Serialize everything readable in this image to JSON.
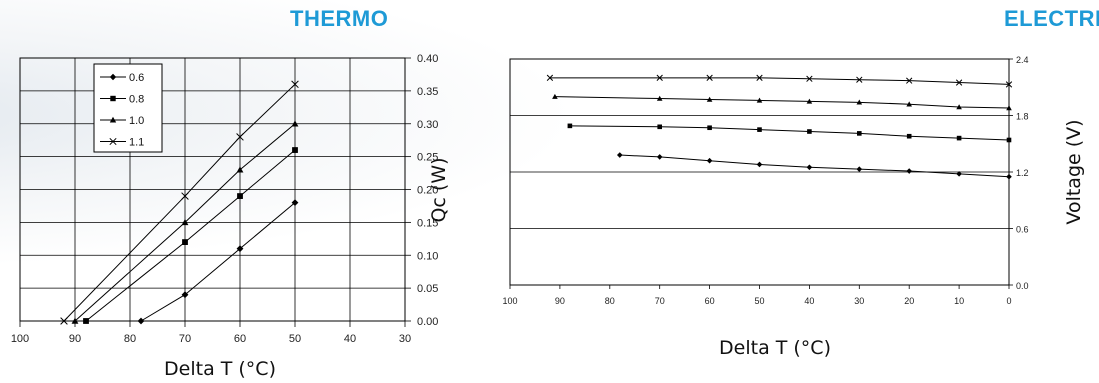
{
  "headings": {
    "thermo": "THERMO",
    "electric": "ELECTRIC"
  },
  "chart_data": [
    {
      "type": "line",
      "xlabel": "Delta T (°C)",
      "ylabel": "Qc (W)",
      "xlim": [
        100,
        30
      ],
      "ylim": [
        0,
        0.4
      ],
      "xticks": [
        "100",
        "90",
        "80",
        "70",
        "60",
        "50",
        "40",
        "30"
      ],
      "yticks": [
        "0.00",
        "0.05",
        "0.10",
        "0.15",
        "0.20",
        "0.25",
        "0.30",
        "0.35",
        "0.40"
      ],
      "grid": true,
      "legend_position": "top-left",
      "series": [
        {
          "name": "0.6",
          "marker": "diamond",
          "x": [
            78,
            70,
            60,
            50
          ],
          "y": [
            0.0,
            0.04,
            0.11,
            0.18
          ]
        },
        {
          "name": "0.8",
          "marker": "square",
          "x": [
            88,
            70,
            60,
            50
          ],
          "y": [
            0.0,
            0.12,
            0.19,
            0.26
          ]
        },
        {
          "name": "1.0",
          "marker": "triangle",
          "x": [
            90,
            70,
            60,
            50
          ],
          "y": [
            0.0,
            0.15,
            0.23,
            0.3
          ]
        },
        {
          "name": "1.1",
          "marker": "cross",
          "x": [
            92,
            70,
            60,
            50
          ],
          "y": [
            0.0,
            0.19,
            0.28,
            0.36
          ]
        }
      ]
    },
    {
      "type": "line",
      "xlabel": "Delta T (°C)",
      "ylabel": "Voltage (V)",
      "xlim": [
        100,
        0
      ],
      "ylim": [
        0,
        2.4
      ],
      "xticks": [
        "100",
        "90",
        "80",
        "70",
        "60",
        "50",
        "40",
        "30",
        "20",
        "10",
        "0"
      ],
      "yticks": [
        "0.0",
        "0.6",
        "1.2",
        "1.8",
        "2.4"
      ],
      "grid": true,
      "series": [
        {
          "marker": "diamond",
          "x": [
            78,
            70,
            60,
            50,
            40,
            30,
            20,
            10,
            0
          ],
          "y": [
            1.38,
            1.36,
            1.32,
            1.28,
            1.25,
            1.23,
            1.21,
            1.18,
            1.15
          ]
        },
        {
          "marker": "square",
          "x": [
            88,
            70,
            60,
            50,
            40,
            30,
            20,
            10,
            0
          ],
          "y": [
            1.69,
            1.68,
            1.67,
            1.65,
            1.63,
            1.61,
            1.58,
            1.56,
            1.54
          ]
        },
        {
          "marker": "triangle",
          "x": [
            91,
            70,
            60,
            50,
            40,
            30,
            20,
            10,
            0
          ],
          "y": [
            2.0,
            1.98,
            1.97,
            1.96,
            1.95,
            1.94,
            1.92,
            1.89,
            1.88
          ]
        },
        {
          "marker": "cross",
          "x": [
            92,
            70,
            60,
            50,
            40,
            30,
            20,
            10,
            0
          ],
          "y": [
            2.2,
            2.2,
            2.2,
            2.2,
            2.19,
            2.18,
            2.17,
            2.15,
            2.13
          ]
        }
      ]
    }
  ]
}
